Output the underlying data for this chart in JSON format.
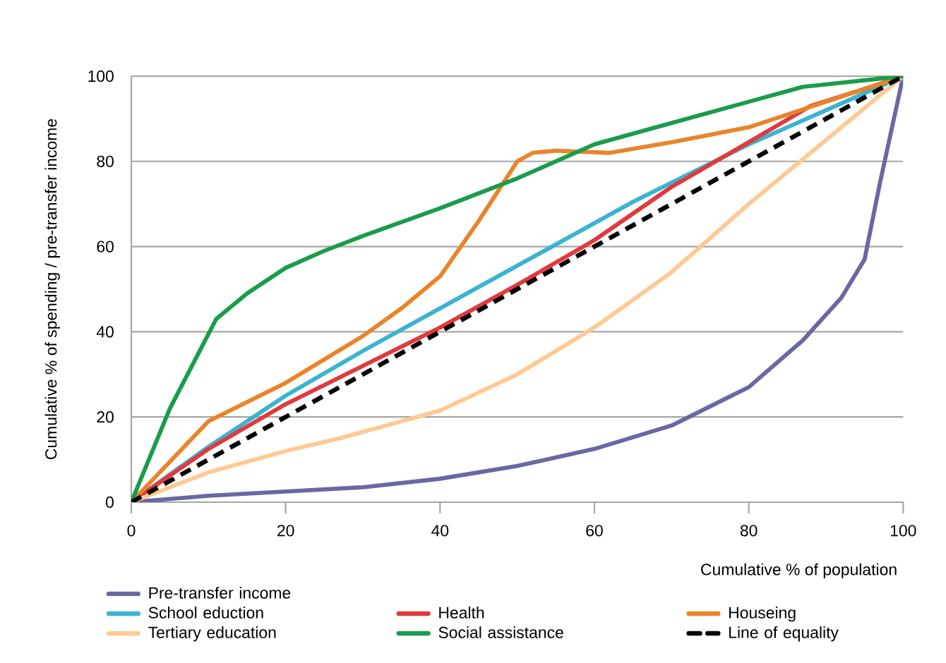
{
  "chart_data": {
    "type": "line",
    "xlabel": "Cumulative % of population",
    "ylabel": "Cumulative % of spending / pre-transfer income",
    "xlim": [
      0,
      100
    ],
    "ylim": [
      0,
      100
    ],
    "xticks": [
      0,
      20,
      40,
      60,
      80,
      100
    ],
    "yticks": [
      0,
      20,
      40,
      60,
      80,
      100
    ],
    "grid": "y",
    "legend": "bottom",
    "marker": "none",
    "series": [
      {
        "name": "Pre-transfer income",
        "color": "#6a67a3",
        "x": [
          0,
          10,
          20,
          30,
          40,
          50,
          60,
          70,
          80,
          87,
          92,
          95,
          97,
          100
        ],
        "values": [
          0,
          1.5,
          2.5,
          3.5,
          5.5,
          8.5,
          12.5,
          18,
          27,
          38,
          48,
          57,
          75,
          100
        ]
      },
      {
        "name": "School eduction",
        "color": "#3bb3d1",
        "x": [
          0,
          10,
          20,
          30,
          40,
          50,
          60,
          65,
          70,
          80,
          90,
          100
        ],
        "values": [
          0,
          13,
          25,
          35.5,
          45.5,
          55.5,
          65.5,
          70.5,
          75,
          84,
          92,
          100
        ]
      },
      {
        "name": "Health",
        "color": "#e03a3e",
        "x": [
          0,
          10,
          20,
          30,
          40,
          50,
          60,
          70,
          80,
          88,
          95,
          100
        ],
        "values": [
          0,
          12.5,
          23,
          32,
          41,
          51,
          61.5,
          74,
          84.5,
          93,
          97,
          100
        ]
      },
      {
        "name": "Houseing",
        "color": "#e9842a",
        "x": [
          0,
          10,
          20,
          30,
          35,
          40,
          45,
          50,
          52,
          55,
          62,
          70,
          80,
          90,
          100
        ],
        "values": [
          0,
          19,
          28,
          39,
          45.5,
          53,
          66,
          80,
          82,
          82.5,
          82,
          84.5,
          88,
          94,
          100
        ]
      },
      {
        "name": "Tertiary education",
        "color": "#ffc993",
        "x": [
          0,
          10,
          20,
          27,
          40,
          50,
          60,
          70,
          80,
          90,
          100
        ],
        "values": [
          0,
          7,
          12,
          15,
          21.5,
          30,
          41,
          54,
          70,
          85,
          100
        ]
      },
      {
        "name": "Social assistance",
        "color": "#1a9c4a",
        "x": [
          0,
          5,
          11,
          15,
          20,
          25,
          30,
          40,
          50,
          60,
          70,
          80,
          87,
          100
        ],
        "values": [
          0,
          22,
          43,
          49,
          55,
          59,
          62.5,
          69,
          76,
          84,
          89,
          94,
          97.5,
          100
        ]
      },
      {
        "name": "Line of equality",
        "color": "#000000",
        "line_style": "dashed",
        "x": [
          0,
          100
        ],
        "values": [
          0,
          100
        ]
      }
    ]
  }
}
